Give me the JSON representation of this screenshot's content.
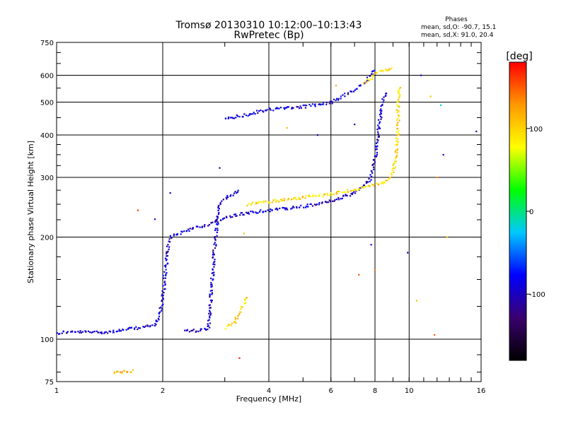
{
  "chart_data": {
    "type": "scatter",
    "title": "Tromsø 20130310 10:12:00–10:13:43",
    "subtitle": "RwPretec (Bp)",
    "xlabel": "Frequency [MHz]",
    "ylabel": "Stationary phase Virtual Height [km]",
    "xscale": "log",
    "yscale": "log",
    "xlim": [
      1,
      16
    ],
    "ylim": [
      75,
      750
    ],
    "x_ticks": [
      1,
      2,
      4,
      6,
      8,
      10,
      16
    ],
    "x_tick_labels": [
      "1",
      "2",
      "4",
      "6",
      "8",
      "10",
      "16"
    ],
    "y_ticks": [
      75,
      100,
      200,
      300,
      400,
      500,
      600,
      750
    ],
    "y_tick_labels": [
      "75",
      "100",
      "200",
      "300",
      "400",
      "500",
      "600",
      "750"
    ],
    "grid": true,
    "stats": {
      "heading": "Phases",
      "line1": "mean, sd,O: -90.7, 15.1",
      "line2": "mean, sd,X:  91.0, 20.4"
    },
    "colorbar": {
      "label": "[deg]",
      "range": [
        -180,
        180
      ],
      "ticks": [
        100,
        0,
        -100
      ],
      "tick_labels": [
        "100",
        "0",
        "-100"
      ],
      "colors": [
        "#000000",
        "#3a006e",
        "#0000ff",
        "#00c8ff",
        "#00ff00",
        "#ffff00",
        "#ff9900",
        "#ff0000"
      ]
    },
    "traces": [
      {
        "phase": -95,
        "points": [
          [
            1.0,
            104
          ],
          [
            1.05,
            105
          ],
          [
            1.1,
            105
          ],
          [
            1.2,
            105
          ],
          [
            1.3,
            105
          ],
          [
            1.4,
            105
          ],
          [
            1.5,
            106
          ],
          [
            1.6,
            107
          ],
          [
            1.7,
            108
          ],
          [
            1.8,
            109
          ],
          [
            1.9,
            110
          ],
          [
            1.95,
            118
          ],
          [
            2.0,
            130
          ],
          [
            2.02,
            150
          ],
          [
            2.05,
            170
          ],
          [
            2.08,
            190
          ],
          [
            2.1,
            200
          ],
          [
            2.2,
            204
          ],
          [
            2.3,
            208
          ],
          [
            2.4,
            212
          ],
          [
            2.5,
            214
          ],
          [
            2.6,
            216
          ],
          [
            2.7,
            218
          ],
          [
            2.8,
            222
          ],
          [
            3.0,
            228
          ],
          [
            3.2,
            232
          ],
          [
            3.5,
            236
          ],
          [
            4.0,
            240
          ],
          [
            4.5,
            243
          ],
          [
            5.0,
            246
          ],
          [
            5.5,
            250
          ],
          [
            6.0,
            256
          ],
          [
            6.5,
            262
          ],
          [
            7.0,
            270
          ],
          [
            7.5,
            285
          ],
          [
            7.8,
            300
          ],
          [
            8.0,
            340
          ],
          [
            8.2,
            420
          ],
          [
            8.4,
            500
          ],
          [
            8.6,
            540
          ]
        ]
      },
      {
        "phase": -95,
        "points": [
          [
            2.3,
            106
          ],
          [
            2.5,
            106
          ],
          [
            2.7,
            108
          ],
          [
            2.75,
            140
          ],
          [
            2.8,
            180
          ],
          [
            2.85,
            220
          ],
          [
            2.9,
            250
          ],
          [
            3.0,
            260
          ],
          [
            3.2,
            270
          ],
          [
            3.3,
            275
          ]
        ]
      },
      {
        "phase": -90,
        "points": [
          [
            3.0,
            450
          ],
          [
            3.2,
            452
          ],
          [
            3.5,
            460
          ],
          [
            3.8,
            470
          ],
          [
            4.0,
            476
          ],
          [
            4.5,
            480
          ],
          [
            5.0,
            485
          ],
          [
            5.5,
            492
          ],
          [
            6.0,
            500
          ],
          [
            6.5,
            520
          ],
          [
            7.0,
            545
          ],
          [
            7.5,
            575
          ],
          [
            7.8,
            600
          ],
          [
            8.0,
            630
          ]
        ]
      },
      {
        "phase": 95,
        "points": [
          [
            3.5,
            250
          ],
          [
            4.0,
            255
          ],
          [
            4.5,
            258
          ],
          [
            5.0,
            262
          ],
          [
            5.5,
            265
          ],
          [
            6.0,
            268
          ],
          [
            6.5,
            272
          ],
          [
            7.0,
            276
          ],
          [
            7.5,
            280
          ],
          [
            8.0,
            285
          ],
          [
            8.5,
            290
          ],
          [
            9.0,
            310
          ],
          [
            9.2,
            350
          ],
          [
            9.3,
            420
          ],
          [
            9.3,
            500
          ],
          [
            9.4,
            560
          ]
        ]
      },
      {
        "phase": 100,
        "points": [
          [
            3.0,
            108
          ],
          [
            3.1,
            110
          ],
          [
            3.2,
            112
          ],
          [
            3.3,
            120
          ],
          [
            3.4,
            128
          ],
          [
            3.5,
            135
          ]
        ]
      },
      {
        "phase": 95,
        "points": [
          [
            7.5,
            570
          ],
          [
            7.8,
            590
          ],
          [
            8.0,
            610
          ],
          [
            8.5,
            620
          ],
          [
            9.0,
            625
          ]
        ]
      },
      {
        "phase": 110,
        "points": [
          [
            1.45,
            80
          ],
          [
            1.55,
            80
          ],
          [
            1.65,
            81
          ]
        ]
      }
    ],
    "scatter_points": [
      {
        "x": 1.7,
        "y": 240,
        "phase": 160
      },
      {
        "x": 1.9,
        "y": 226,
        "phase": -100
      },
      {
        "x": 2.1,
        "y": 270,
        "phase": -100
      },
      {
        "x": 2.9,
        "y": 320,
        "phase": -100
      },
      {
        "x": 3.4,
        "y": 205,
        "phase": 110
      },
      {
        "x": 3.3,
        "y": 88,
        "phase": 170
      },
      {
        "x": 4.5,
        "y": 420,
        "phase": 110
      },
      {
        "x": 5.5,
        "y": 400,
        "phase": -100
      },
      {
        "x": 6.2,
        "y": 560,
        "phase": 120
      },
      {
        "x": 7.0,
        "y": 430,
        "phase": -100
      },
      {
        "x": 7.2,
        "y": 155,
        "phase": 150
      },
      {
        "x": 7.8,
        "y": 190,
        "phase": -90
      },
      {
        "x": 8.0,
        "y": 160,
        "phase": 140
      },
      {
        "x": 9.9,
        "y": 180,
        "phase": -110
      },
      {
        "x": 10.8,
        "y": 600,
        "phase": -100
      },
      {
        "x": 10.5,
        "y": 130,
        "phase": 110
      },
      {
        "x": 11.5,
        "y": 520,
        "phase": 110
      },
      {
        "x": 12.0,
        "y": 300,
        "phase": 130
      },
      {
        "x": 12.3,
        "y": 490,
        "phase": -20
      },
      {
        "x": 12.5,
        "y": 350,
        "phase": -100
      },
      {
        "x": 12.8,
        "y": 200,
        "phase": 110
      },
      {
        "x": 11.8,
        "y": 103,
        "phase": 150
      },
      {
        "x": 15.5,
        "y": 410,
        "phase": -110
      }
    ]
  }
}
